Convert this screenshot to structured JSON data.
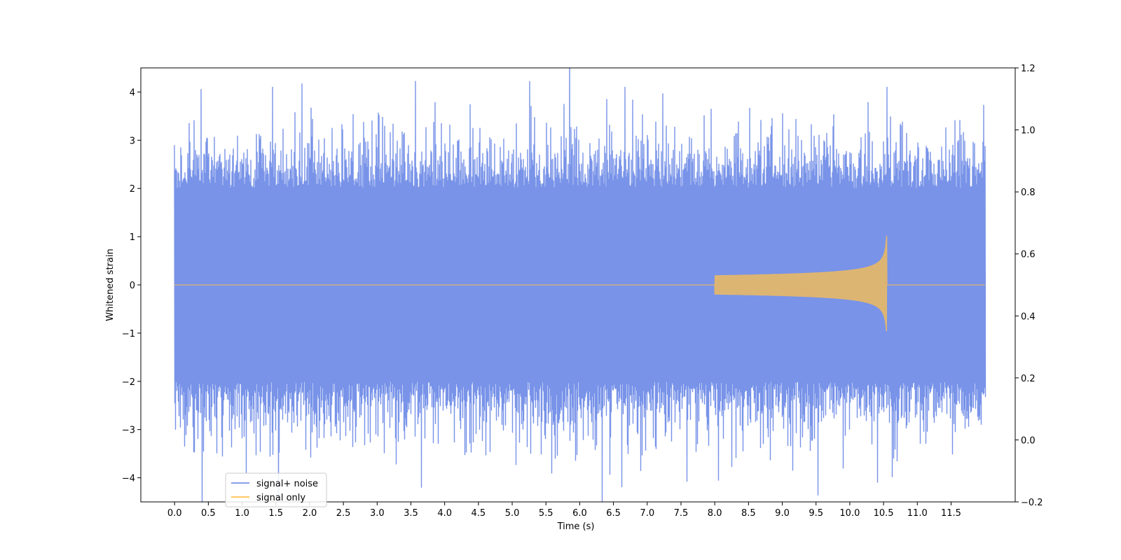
{
  "chart_data": {
    "type": "line",
    "title": "",
    "xlabel": "Time (s)",
    "ylabel": "Whitened strain",
    "xlim": [
      -0.5,
      12.45
    ],
    "ylim": [
      -4.5,
      4.5
    ],
    "ylim_right": [
      -0.2,
      1.2
    ],
    "x_ticks": [
      "0.0",
      "0.5",
      "1.0",
      "1.5",
      "2.0",
      "2.5",
      "3.0",
      "3.5",
      "4.0",
      "4.5",
      "5.0",
      "5.5",
      "6.0",
      "6.5",
      "7.0",
      "7.5",
      "8.0",
      "8.5",
      "9.0",
      "9.5",
      "10.0",
      "10.5",
      "11.0",
      "11.5"
    ],
    "y_ticks": [
      "4",
      "3",
      "2",
      "1",
      "0",
      "−1",
      "−2",
      "−3",
      "−4"
    ],
    "y_ticks_right": [
      "1.2",
      "1.0",
      "0.8",
      "0.6",
      "0.4",
      "0.2",
      "0.0",
      "−0.2"
    ],
    "grid": false,
    "legend_position": "lower-left",
    "series": [
      {
        "name": "signal+ noise",
        "color": "#7893e8",
        "x_range": [
          0.0,
          12.0
        ],
        "typical_envelope": [
          -2.0,
          2.0
        ],
        "extreme_peaks": [
          {
            "x": 1.45,
            "y": 4.1
          },
          {
            "x": 6.67,
            "y": 4.1
          },
          {
            "x": 10.55,
            "y": 4.1
          },
          {
            "x": 6.9,
            "y": -3.85
          },
          {
            "x": 8.05,
            "y": -4.05
          },
          {
            "x": 0.7,
            "y": -3.55
          },
          {
            "x": 10.7,
            "y": -3.65
          }
        ]
      },
      {
        "name": "signal only",
        "color": "#ffc04c",
        "x_range": [
          0.0,
          12.0
        ],
        "chirp_start": 8.0,
        "merger_time": 10.55,
        "peak_amplitude": [
          -0.95,
          1.05
        ]
      }
    ]
  }
}
